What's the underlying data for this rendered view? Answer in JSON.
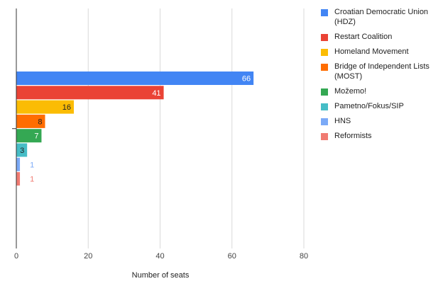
{
  "chart_data": {
    "type": "bar",
    "orientation": "horizontal",
    "title": "",
    "xlabel": "Number of seats",
    "ylabel": "",
    "xlim": [
      0,
      80
    ],
    "xticks": [
      0,
      20,
      40,
      60,
      80
    ],
    "grid": true,
    "legend_position": "right",
    "categories": [
      "Croatian Democratic Union (HDZ)",
      "Restart Coalition",
      "Homeland Movement",
      "Bridge of Independent Lists (MOST)",
      "Možemo!",
      "Pametno/Fokus/SIP",
      "HNS",
      "Reformists"
    ],
    "values": [
      66,
      41,
      16,
      8,
      7,
      3,
      1,
      1
    ],
    "colors": [
      "#4285f4",
      "#ea4335",
      "#fbbc04",
      "#ff6d01",
      "#34a853",
      "#46bdc6",
      "#7baaf7",
      "#f07b72"
    ],
    "label_colors": [
      "#ffffff",
      "#ffffff",
      "#222222",
      "#222222",
      "#ffffff",
      "#222222",
      "#7baaf7",
      "#f07b72"
    ]
  }
}
